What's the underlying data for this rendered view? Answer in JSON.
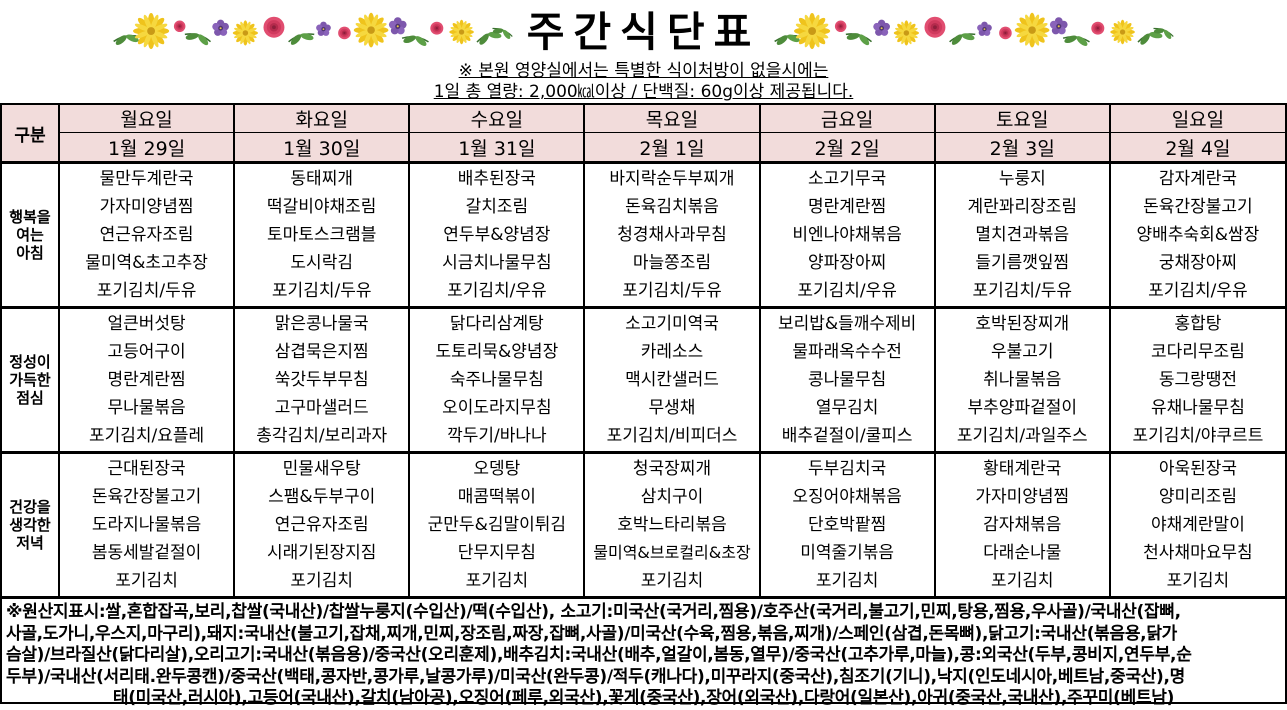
{
  "title": "주간식단표",
  "notice_line1": "※ 본원 영양실에서는 특별한 식이처방이 없을시에는",
  "notice_line2": "1일 총 열량: 2,000㎉이상 / 단백질: 60g이상 제공됩니다.",
  "icons": {
    "left": "flower-garland",
    "right": "flower-garland"
  },
  "colors": {
    "header_bg": "#F2DCDB",
    "border": "#000000",
    "flower_yellow": "#EFC31C",
    "flower_pink": "#E14D70",
    "flower_purple": "#7D57AC",
    "leaf_green": "#4E8C3B"
  },
  "table": {
    "corner_label": "구분",
    "days": [
      {
        "day": "월요일",
        "date": "1월 29일"
      },
      {
        "day": "화요일",
        "date": "1월 30일"
      },
      {
        "day": "수요일",
        "date": "1월 31일"
      },
      {
        "day": "목요일",
        "date": "2월 1일"
      },
      {
        "day": "금요일",
        "date": "2월 2일"
      },
      {
        "day": "토요일",
        "date": "2월 3일"
      },
      {
        "day": "일요일",
        "date": "2월 4일"
      }
    ],
    "meals": [
      {
        "label_lines": [
          "행복을",
          "여는",
          "아침"
        ],
        "menus": [
          [
            "물만두계란국",
            "가자미양념찜",
            "연근유자조림",
            "물미역&초고추장",
            "포기김치/두유"
          ],
          [
            "동태찌개",
            "떡갈비야채조림",
            "토마토스크램블",
            "도시락김",
            "포기김치/두유"
          ],
          [
            "배추된장국",
            "갈치조림",
            "연두부&양념장",
            "시금치나물무침",
            "포기김치/우유"
          ],
          [
            "바지락순두부찌개",
            "돈육김치볶음",
            "청경채사과무침",
            "마늘쫑조림",
            "포기김치/두유"
          ],
          [
            "소고기무국",
            "명란계란찜",
            "비엔나야채볶음",
            "양파장아찌",
            "포기김치/우유"
          ],
          [
            "누룽지",
            "계란꽈리장조림",
            "멸치견과볶음",
            "들기름깻잎찜",
            "포기김치/두유"
          ],
          [
            "감자계란국",
            "돈육간장불고기",
            "양배추숙회&쌈장",
            "궁채장아찌",
            "포기김치/우유"
          ]
        ]
      },
      {
        "label_lines": [
          "정성이",
          "가득한",
          "점심"
        ],
        "menus": [
          [
            "얼큰버섯탕",
            "고등어구이",
            "명란계란찜",
            "무나물볶음",
            "포기김치/요플레"
          ],
          [
            "맑은콩나물국",
            "삼겹묵은지찜",
            "쑥갓두부무침",
            "고구마샐러드",
            "총각김치/보리과자"
          ],
          [
            "닭다리삼계탕",
            "도토리묵&양념장",
            "숙주나물무침",
            "오이도라지무침",
            "깍두기/바나나"
          ],
          [
            "소고기미역국",
            "카레소스",
            "맥시칸샐러드",
            "무생채",
            "포기김치/비피더스"
          ],
          [
            "보리밥&들깨수제비",
            "물파래옥수수전",
            "콩나물무침",
            "열무김치",
            "배추겉절이/쿨피스"
          ],
          [
            "호박된장찌개",
            "우불고기",
            "취나물볶음",
            "부추양파겉절이",
            "포기김치/과일주스"
          ],
          [
            "홍합탕",
            "코다리무조림",
            "동그랑땡전",
            "유채나물무침",
            "포기김치/야쿠르트"
          ]
        ]
      },
      {
        "label_lines": [
          "건강을",
          "생각한",
          "저녁"
        ],
        "menus": [
          [
            "근대된장국",
            "돈육간장불고기",
            "도라지나물볶음",
            "봄동세발겉절이",
            "포기김치"
          ],
          [
            "민물새우탕",
            "스팸&두부구이",
            "연근유자조림",
            "시래기된장지짐",
            "포기김치"
          ],
          [
            "오뎅탕",
            "매콤떡볶이",
            "군만두&김말이튀김",
            "단무지무침",
            "포기김치"
          ],
          [
            "청국장찌개",
            "삼치구이",
            "호박느타리볶음",
            "물미역&브로컬리&초장",
            "포기김치"
          ],
          [
            "두부김치국",
            "오징어야채볶음",
            "단호박팥찜",
            "미역줄기볶음",
            "포기김치"
          ],
          [
            "황태계란국",
            "가자미양념찜",
            "감자채볶음",
            "다래순나물",
            "포기김치"
          ],
          [
            "아욱된장국",
            "양미리조림",
            "야채계란말이",
            "천사채마요무침",
            "포기김치"
          ]
        ]
      }
    ]
  },
  "footer_lines": [
    "※원산지표시:쌀,혼합잡곡,보리,찹쌀(국내산)/찹쌀누룽지(수입산)/떡(수입산), 소고기:미국산(국거리,찜용)/호주산(국거리,불고기,민찌,탕용,찜용,우사골)/국내산(잡뼈,",
    "사골,도가니,우스지,마구리),돼지:국내산(불고기,잡채,찌개,민찌,장조림,짜장,잡뼈,사골)/미국산(수육,찜용,볶음,찌개)/스페인(삼겹,돈목뼈),닭고기:국내산(볶음용,닭가",
    "슴살)/브라질산(닭다리살),오리고기:국내산(볶음용)/중국산(오리훈제),배추김치:국내산(배추,얼갈이,봄동,열무)/중국산(고추가루,마늘),콩:외국산(두부,콩비지,연두부,순",
    "두부)/국내산(서리태.완두콩캔)/중국산(백태,콩자반,콩가루,날콩가루)/미국산(완두콩)/적두(캐나다),미꾸라지(중국산),침조기(기니),낙지(인도네시아,베트남,중국산),명",
    "태(미국산,러시아),고등어(국내산),갈치(남아공),오징어(페루,외국산),꽃게(중국산),장어(외국산),다랑어(일본산),아귀(중국산,국내산),주꾸미(베트남)"
  ]
}
